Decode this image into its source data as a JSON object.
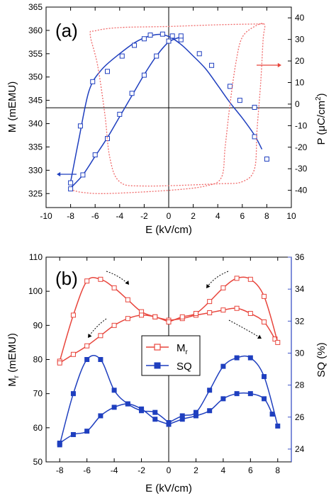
{
  "colors": {
    "blue": "#1f3fbf",
    "red": "#e8453c",
    "red_dotted": "#f06a6a",
    "blue_axis": "#3b52c6",
    "axis": "#000000"
  },
  "chart_data": [
    {
      "panel": "a",
      "panel_label": "(a)",
      "type": "line",
      "xlabel": "E  (kV/cm)",
      "ylabel_left": "M  (mEMU)",
      "ylabel_right": "P  (μC/cm²)",
      "xlim": [
        -10,
        10
      ],
      "ylim_left": [
        322,
        365
      ],
      "ylim_right": [
        -48,
        45
      ],
      "xticks": [
        -10,
        -8,
        -6,
        -4,
        -2,
        0,
        2,
        4,
        6,
        8,
        10
      ],
      "yticks_left": [
        325,
        330,
        335,
        340,
        345,
        350,
        355,
        360,
        365
      ],
      "yticks_right": [
        -40,
        -30,
        -20,
        -10,
        0,
        10,
        20,
        30,
        40
      ],
      "zero_lines": {
        "x": 0,
        "y_left": 343.4
      },
      "series": [
        {
          "axis": "left",
          "style": "solid-markers",
          "marker": "open-square",
          "curve": [
            [
              -8,
              327.5
            ],
            [
              -7.3,
              337
            ],
            [
              -6.5,
              347
            ],
            [
              -5.5,
              351.5
            ],
            [
              -4,
              355
            ],
            [
              -2.5,
              357.8
            ],
            [
              -1,
              359.1
            ],
            [
              0,
              358.7
            ],
            [
              1,
              357
            ],
            [
              2,
              354.5
            ],
            [
              3,
              351.8
            ],
            [
              4,
              348.2
            ],
            [
              5,
              344.5
            ],
            [
              6,
              341.2
            ],
            [
              7,
              337.5
            ],
            [
              7.6,
              334.5
            ]
          ],
          "markers": [
            [
              -8,
              327.3
            ],
            [
              -7.2,
              339.5
            ],
            [
              -6.2,
              349
            ],
            [
              -5,
              351.2
            ],
            [
              -3.8,
              354.5
            ],
            [
              -2.8,
              356.8
            ],
            [
              -2,
              358.2
            ],
            [
              -1.5,
              359
            ],
            [
              -0.5,
              359.2
            ],
            [
              0.3,
              358.8
            ],
            [
              1,
              358
            ],
            [
              2.5,
              355
            ],
            [
              3.5,
              352.5
            ],
            [
              5,
              348
            ],
            [
              5.8,
              345
            ],
            [
              7,
              343.5
            ],
            [
              7,
              337.2
            ],
            [
              8,
              332.4
            ]
          ]
        },
        {
          "axis": "left",
          "style": "solid-markers",
          "marker": "open-square",
          "curve": [
            [
              -8,
              326.2
            ],
            [
              -7,
              329
            ],
            [
              -6,
              333
            ],
            [
              -5,
              337
            ],
            [
              -4,
              341.5
            ],
            [
              -3,
              346
            ],
            [
              -2,
              350.5
            ],
            [
              -1,
              354.5
            ],
            [
              0,
              357.5
            ],
            [
              1,
              358.6
            ]
          ],
          "markers": [
            [
              -8,
              326
            ],
            [
              -7,
              329
            ],
            [
              -6,
              333.3
            ],
            [
              -5,
              336.8
            ],
            [
              -4,
              342
            ],
            [
              -3,
              346.5
            ],
            [
              -2,
              350.4
            ],
            [
              -1,
              354.5
            ],
            [
              0,
              357.7
            ],
            [
              1,
              358.8
            ]
          ]
        },
        {
          "axis": "right",
          "style": "dotted",
          "curve": [
            [
              -7.8,
              -40
            ],
            [
              -7,
              -41
            ],
            [
              -5,
              -41.5
            ],
            [
              0,
              -40
            ],
            [
              3,
              -38
            ],
            [
              4.3,
              -34
            ],
            [
              4.6,
              -20
            ],
            [
              5,
              0
            ],
            [
              5.5,
              20
            ],
            [
              6,
              31
            ],
            [
              7,
              36
            ],
            [
              7.8,
              37
            ],
            [
              7.7,
              30
            ],
            [
              7.5,
              10
            ],
            [
              7.2,
              -12
            ],
            [
              7,
              -30
            ],
            [
              6,
              -36
            ],
            [
              4,
              -37
            ],
            [
              -2,
              -38
            ],
            [
              -4,
              -36
            ],
            [
              -4.8,
              -25
            ],
            [
              -5.2,
              -5
            ],
            [
              -5.8,
              18
            ],
            [
              -6.4,
              32
            ],
            [
              -6,
              34
            ],
            [
              -4,
              35.5
            ],
            [
              0,
              36
            ],
            [
              4,
              36.8
            ],
            [
              7.8,
              37.2
            ]
          ]
        }
      ],
      "arrows": [
        {
          "points_to": "left-axis",
          "color": "blue"
        },
        {
          "points_to": "right-axis",
          "color": "red"
        }
      ]
    },
    {
      "panel": "b",
      "panel_label": "(b)",
      "type": "line",
      "xlabel": "E  (kV/cm)",
      "ylabel_left": "Mᵣ  (mEMU)",
      "ylabel_right": "SQ  (%)",
      "xlim": [
        -9,
        9
      ],
      "ylim_left": [
        50,
        110
      ],
      "ylim_right": [
        23.2,
        36
      ],
      "xticks": [
        -8,
        -6,
        -4,
        -2,
        0,
        2,
        4,
        6,
        8
      ],
      "yticks_left": [
        50,
        60,
        70,
        80,
        90,
        100,
        110
      ],
      "yticks_right": [
        24,
        26,
        28,
        30,
        32,
        34,
        36
      ],
      "legend": {
        "position": "center",
        "entries": [
          "Mᵣ",
          "SQ"
        ]
      },
      "series": [
        {
          "name": "Mᵣ",
          "axis": "left",
          "marker": "open-square",
          "color": "red",
          "segments": [
            {
              "x": [
                -8,
                -7,
                -6,
                -5,
                -4,
                -3,
                -2,
                -1,
                0
              ],
              "y": [
                79.5,
                93,
                103,
                103.5,
                101,
                97.5,
                94,
                92.5,
                91.5
              ]
            },
            {
              "x": [
                -8,
                -7,
                -6,
                -5,
                -4,
                -3,
                -2,
                -1,
                0
              ],
              "y": [
                79,
                81.5,
                84,
                87,
                90,
                92,
                93,
                92.5,
                91
              ]
            },
            {
              "x": [
                0,
                1,
                2,
                3,
                4,
                5,
                6,
                7,
                7.8
              ],
              "y": [
                91.5,
                92,
                93,
                93.7,
                94.5,
                95,
                93.5,
                91,
                86
              ]
            },
            {
              "x": [
                0,
                1,
                2,
                3,
                4,
                5,
                6,
                7,
                8
              ],
              "y": [
                91,
                92.5,
                93.5,
                97,
                101,
                103.8,
                103.5,
                98.5,
                85
              ]
            }
          ]
        },
        {
          "name": "SQ",
          "axis": "left",
          "marker": "filled-square",
          "color": "blue",
          "segments": [
            {
              "x": [
                -8,
                -7,
                -6,
                -5,
                -4,
                -3,
                -2,
                -1,
                0
              ],
              "y": [
                55,
                70,
                80,
                80,
                71,
                67,
                65,
                64.5,
                61.5
              ]
            },
            {
              "x": [
                -8,
                -7,
                -6,
                -5,
                -4,
                -3,
                -2,
                -1,
                0
              ],
              "y": [
                55.5,
                58,
                59,
                63.5,
                66,
                67,
                65.5,
                62.5,
                61
              ]
            },
            {
              "x": [
                0,
                1,
                2,
                3,
                4,
                5,
                6,
                7,
                7.6
              ],
              "y": [
                61,
                62.5,
                63.5,
                65,
                68.5,
                70,
                70,
                68.5,
                64
              ]
            },
            {
              "x": [
                0,
                1,
                2,
                3,
                4,
                5,
                6,
                7,
                8
              ],
              "y": [
                61.5,
                63.5,
                64.5,
                71,
                78,
                80.5,
                80.5,
                75,
                60.5
              ]
            }
          ]
        }
      ],
      "arrows": 4
    }
  ],
  "panels": [
    {
      "label": "(a)",
      "xlabel": "E  (kV/cm)",
      "ylabel_left": "M  (mEMU)",
      "ylabel_right_main": "P  (μC/cm",
      "ylabel_right_sup": "2",
      "ylabel_right_tail": ")"
    },
    {
      "label": "(b)",
      "xlabel": "E  (kV/cm)",
      "ylabel_left_main": "M",
      "ylabel_left_sub": "r",
      "ylabel_left_tail": "  (mEMU)",
      "ylabel_right": "SQ  (%)",
      "legend_mr_main": "M",
      "legend_mr_sub": "r",
      "legend_sq": "SQ"
    }
  ]
}
